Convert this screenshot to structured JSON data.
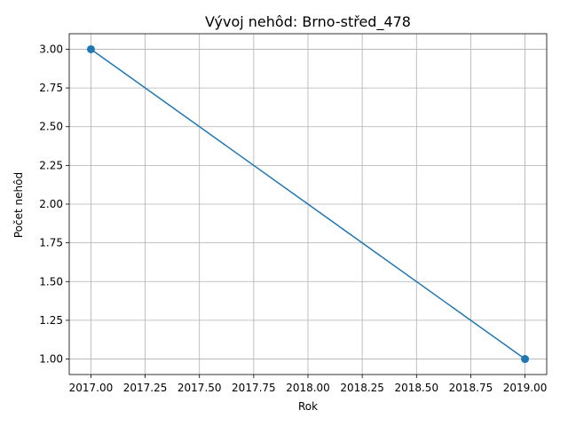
{
  "chart_data": {
    "type": "line",
    "title": "Vývoj nehôd: Brno-střed_478",
    "xlabel": "Rok",
    "ylabel": "Počet nehôd",
    "xlim": [
      2016.9,
      2019.1
    ],
    "ylim": [
      0.9,
      3.1
    ],
    "xticks": [
      2017.0,
      2017.25,
      2017.5,
      2017.75,
      2018.0,
      2018.25,
      2018.5,
      2018.75,
      2019.0
    ],
    "xtick_labels": [
      "2017.00",
      "2017.25",
      "2017.50",
      "2017.75",
      "2018.00",
      "2018.25",
      "2018.50",
      "2018.75",
      "2019.00"
    ],
    "yticks": [
      1.0,
      1.25,
      1.5,
      1.75,
      2.0,
      2.25,
      2.5,
      2.75,
      3.0
    ],
    "ytick_labels": [
      "1.00",
      "1.25",
      "1.50",
      "1.75",
      "2.00",
      "2.25",
      "2.50",
      "2.75",
      "3.00"
    ],
    "grid": true,
    "series": [
      {
        "x": [
          2017,
          2019
        ],
        "values": [
          3,
          1
        ],
        "color": "#1f77b4",
        "marker": "circle"
      }
    ]
  }
}
